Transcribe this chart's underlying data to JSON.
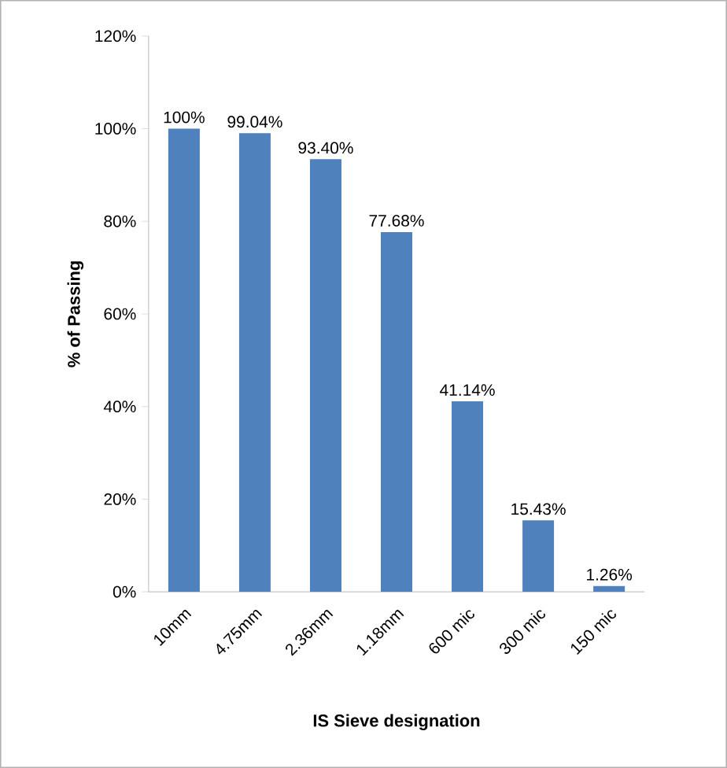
{
  "chart_data": {
    "type": "bar",
    "xlabel": "IS Sieve designation",
    "ylabel": "% of Passing",
    "categories": [
      "10mm",
      "4.75mm",
      "2.36mm",
      "1.18mm",
      "600 mic",
      "300 mic",
      "150 mic"
    ],
    "values": [
      100,
      99.04,
      93.4,
      77.68,
      41.14,
      15.43,
      1.26
    ],
    "value_labels": [
      "100%",
      "99.04%",
      "93.40%",
      "77.68%",
      "41.14%",
      "15.43%",
      "1.26%"
    ],
    "color": "#4f81bd",
    "ylim": [
      0,
      120
    ],
    "yticks": [
      {
        "value": 0,
        "label": "0%"
      },
      {
        "value": 20,
        "label": "20%"
      },
      {
        "value": 40,
        "label": "40%"
      },
      {
        "value": 60,
        "label": "60%"
      },
      {
        "value": 80,
        "label": "80%"
      },
      {
        "value": 100,
        "label": "100%"
      },
      {
        "value": 120,
        "label": "120%"
      }
    ],
    "grid": false
  }
}
